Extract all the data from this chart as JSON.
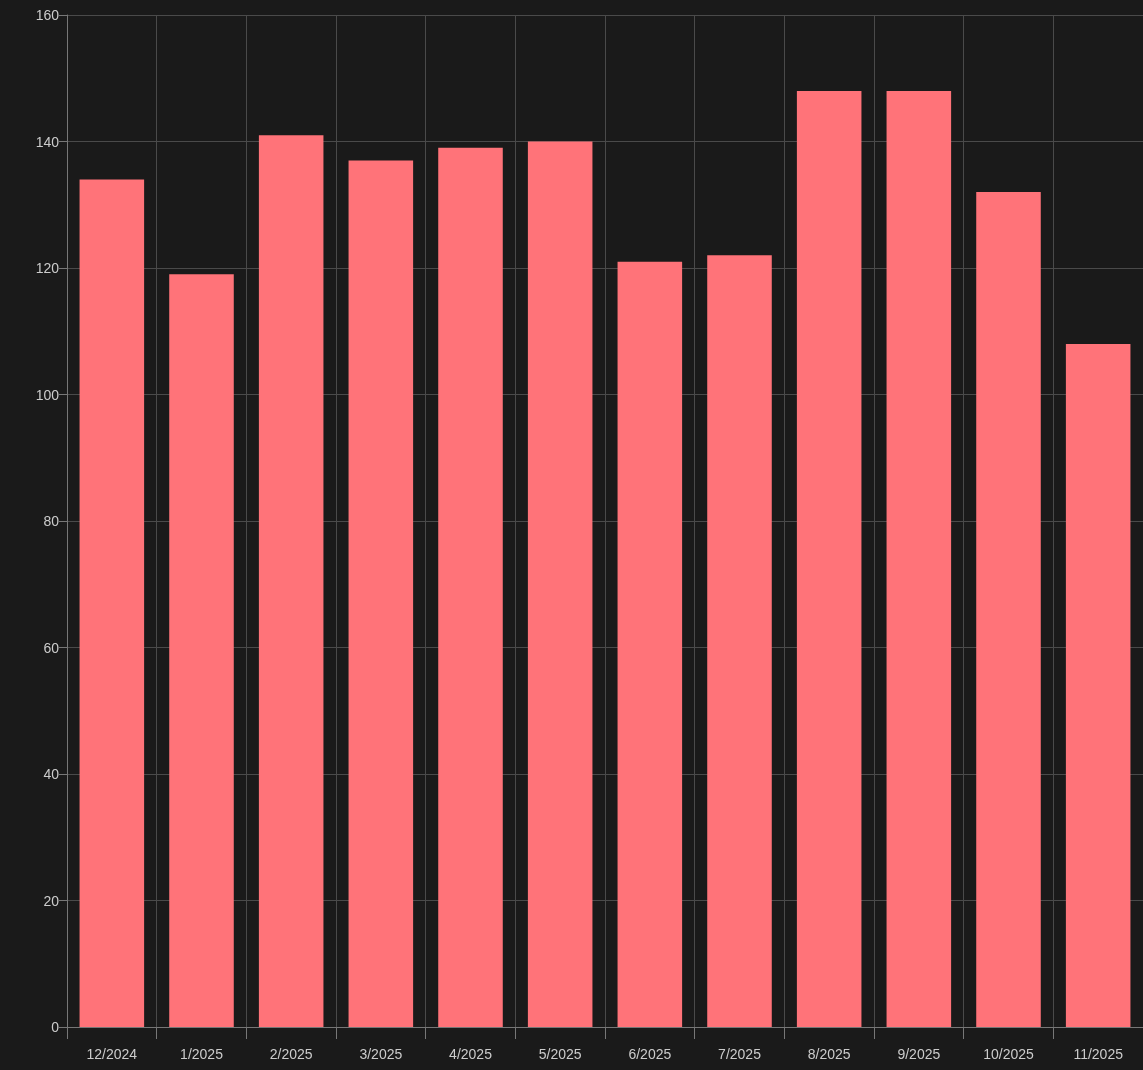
{
  "chart_data": {
    "type": "bar",
    "categories": [
      "12/2024",
      "1/2025",
      "2/2025",
      "3/2025",
      "4/2025",
      "5/2025",
      "6/2025",
      "7/2025",
      "8/2025",
      "9/2025",
      "10/2025",
      "11/2025"
    ],
    "values": [
      134,
      119,
      141,
      137,
      139,
      140,
      121,
      122,
      148,
      148,
      132,
      108
    ],
    "color": "#ff7379",
    "ylim": [
      0,
      160
    ],
    "yticks": [
      0,
      20,
      40,
      60,
      80,
      100,
      120,
      140,
      160
    ],
    "grid": true
  }
}
